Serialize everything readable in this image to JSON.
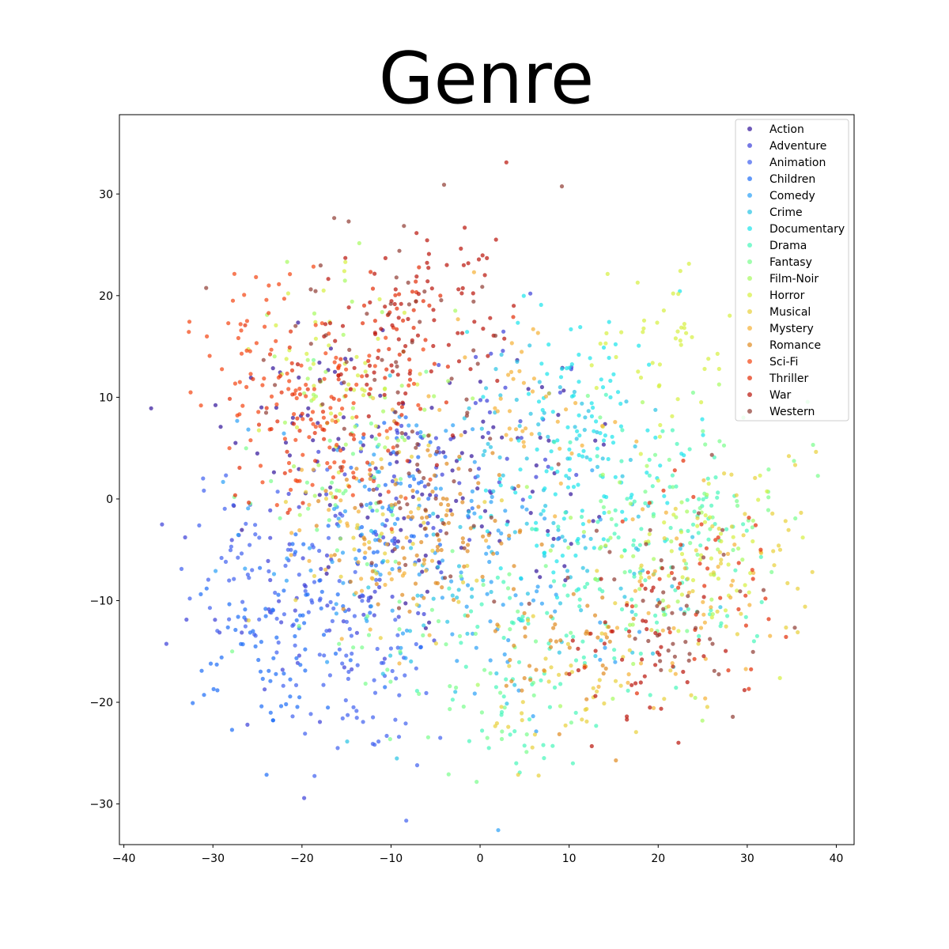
{
  "chart_data": {
    "type": "scatter",
    "title": "Genre",
    "xlabel": "",
    "ylabel": "",
    "xlim": [
      -40.5,
      42
    ],
    "ylim": [
      -34,
      37.8
    ],
    "xticks": [
      -40,
      -30,
      -20,
      -10,
      0,
      10,
      20,
      30,
      40
    ],
    "yticks": [
      -30,
      -20,
      -10,
      0,
      10,
      20,
      30
    ],
    "xtick_labels": [
      "−40",
      "−30",
      "−20",
      "−10",
      "0",
      "10",
      "20",
      "30",
      "40"
    ],
    "ytick_labels": [
      "−30",
      "−20",
      "−10",
      "0",
      "10",
      "20",
      "30"
    ],
    "grid": false,
    "legend_position": "top-right",
    "series": [
      {
        "name": "Action",
        "color": "#30129a",
        "centers": [
          [
            -8,
            -2
          ],
          [
            5,
            3
          ],
          [
            -20,
            8
          ]
        ],
        "spread": 14
      },
      {
        "name": "Adventure",
        "color": "#3a3fd9",
        "centers": [
          [
            -10,
            -3
          ],
          [
            0,
            5
          ],
          [
            -22,
            -10
          ]
        ],
        "spread": 14
      },
      {
        "name": "Animation",
        "color": "#3f5ff0",
        "centers": [
          [
            -18,
            -12
          ],
          [
            -25,
            -5
          ],
          [
            -12,
            -20
          ]
        ],
        "spread": 9
      },
      {
        "name": "Children",
        "color": "#1c6cf7",
        "centers": [
          [
            -18,
            -10
          ],
          [
            -8,
            0
          ],
          [
            -24,
            -16
          ]
        ],
        "spread": 9
      },
      {
        "name": "Comedy",
        "color": "#2a9ff6",
        "centers": [
          [
            -5,
            -5
          ],
          [
            5,
            -10
          ],
          [
            -15,
            -2
          ]
        ],
        "spread": 13
      },
      {
        "name": "Crime",
        "color": "#26c3e4",
        "centers": [
          [
            5,
            5
          ],
          [
            15,
            -5
          ],
          [
            -5,
            -10
          ]
        ],
        "spread": 14
      },
      {
        "name": "Documentary",
        "color": "#1ae4eb",
        "centers": [
          [
            10,
            12
          ],
          [
            15,
            5
          ],
          [
            8,
            -2
          ]
        ],
        "spread": 10
      },
      {
        "name": "Drama",
        "color": "#46f7b9",
        "centers": [
          [
            12,
            -10
          ],
          [
            20,
            0
          ],
          [
            5,
            -18
          ],
          [
            25,
            -8
          ]
        ],
        "spread": 11
      },
      {
        "name": "Fantasy",
        "color": "#79fe8c",
        "centers": [
          [
            0,
            -15
          ],
          [
            -15,
            0
          ],
          [
            25,
            0
          ]
        ],
        "spread": 14
      },
      {
        "name": "Film-Noir",
        "color": "#a7fb5f",
        "centers": [
          [
            20,
            -5
          ],
          [
            -15,
            10
          ]
        ],
        "spread": 14
      },
      {
        "name": "Horror",
        "color": "#d5f03f",
        "centers": [
          [
            -16,
            12
          ],
          [
            20,
            15
          ],
          [
            25,
            -5
          ]
        ],
        "spread": 10
      },
      {
        "name": "Musical",
        "color": "#e8d039",
        "centers": [
          [
            -10,
            -2
          ],
          [
            10,
            -20
          ],
          [
            30,
            -5
          ]
        ],
        "spread": 12
      },
      {
        "name": "Mystery",
        "color": "#f5b134",
        "centers": [
          [
            -12,
            -4
          ],
          [
            22,
            -10
          ],
          [
            5,
            10
          ]
        ],
        "spread": 11
      },
      {
        "name": "Romance",
        "color": "#e08a20",
        "centers": [
          [
            -10,
            -4
          ],
          [
            -2,
            -2
          ],
          [
            10,
            -15
          ]
        ],
        "spread": 9
      },
      {
        "name": "Sci-Fi",
        "color": "#f4430f",
        "centers": [
          [
            -18,
            10
          ],
          [
            -15,
            5
          ],
          [
            -25,
            15
          ]
        ],
        "spread": 9
      },
      {
        "name": "Thriller",
        "color": "#e32c05",
        "centers": [
          [
            -20,
            8
          ],
          [
            -10,
            15
          ],
          [
            25,
            -8
          ]
        ],
        "spread": 11
      },
      {
        "name": "War",
        "color": "#b91308",
        "centers": [
          [
            -10,
            15
          ],
          [
            18,
            -15
          ],
          [
            -3,
            20
          ]
        ],
        "spread": 10
      },
      {
        "name": "Western",
        "color": "#8e3a32",
        "centers": [
          [
            -12,
            18
          ],
          [
            22,
            -12
          ],
          [
            -5,
            0
          ]
        ],
        "spread": 13
      }
    ]
  }
}
